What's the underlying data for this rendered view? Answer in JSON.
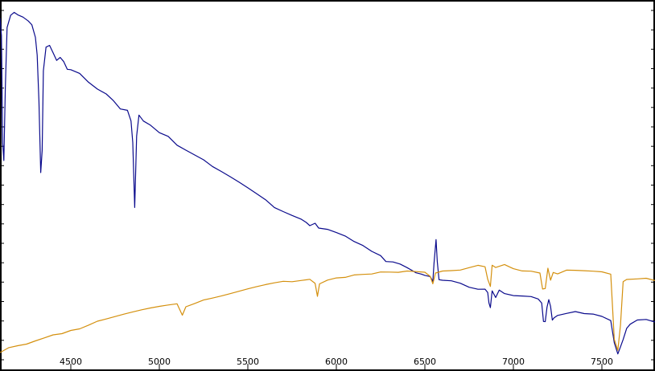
{
  "chart_data": {
    "type": "line",
    "title": "",
    "xlabel": "",
    "ylabel": "",
    "xlim": [
      4100,
      7800
    ],
    "ylim": [
      0,
      1.0
    ],
    "grid": false,
    "x_ticks": [
      4500,
      5000,
      5500,
      6000,
      6500,
      7000,
      7500
    ],
    "x_tick_labels": [
      "4500",
      "5000",
      "5500",
      "6000",
      "6500",
      "7000",
      "7500"
    ],
    "y_tick_count": 19,
    "colors": {
      "blue": "#0a0a8c",
      "orange": "#d4900e",
      "frame": "#000000",
      "background": "#ffffff"
    },
    "series": [
      {
        "color": "#0a0a8c",
        "points": [
          [
            4100,
            0.95
          ],
          [
            4108,
            0.9
          ],
          [
            4115,
            0.6
          ],
          [
            4122,
            0.55
          ],
          [
            4130,
            0.75
          ],
          [
            4140,
            0.92
          ],
          [
            4160,
            0.955
          ],
          [
            4180,
            0.965
          ],
          [
            4200,
            0.96
          ],
          [
            4230,
            0.955
          ],
          [
            4260,
            0.945
          ],
          [
            4280,
            0.935
          ],
          [
            4300,
            0.9
          ],
          [
            4310,
            0.85
          ],
          [
            4320,
            0.72
          ],
          [
            4330,
            0.52
          ],
          [
            4338,
            0.58
          ],
          [
            4345,
            0.8
          ],
          [
            4360,
            0.865
          ],
          [
            4380,
            0.87
          ],
          [
            4400,
            0.85
          ],
          [
            4420,
            0.83
          ],
          [
            4440,
            0.84
          ],
          [
            4460,
            0.83
          ],
          [
            4480,
            0.81
          ],
          [
            4500,
            0.81
          ],
          [
            4550,
            0.8
          ],
          [
            4600,
            0.775
          ],
          [
            4650,
            0.755
          ],
          [
            4700,
            0.74
          ],
          [
            4740,
            0.72
          ],
          [
            4780,
            0.695
          ],
          [
            4820,
            0.69
          ],
          [
            4840,
            0.66
          ],
          [
            4850,
            0.6
          ],
          [
            4861,
            0.42
          ],
          [
            4872,
            0.62
          ],
          [
            4885,
            0.68
          ],
          [
            4910,
            0.665
          ],
          [
            4950,
            0.655
          ],
          [
            5000,
            0.635
          ],
          [
            5050,
            0.625
          ],
          [
            5100,
            0.6
          ],
          [
            5150,
            0.585
          ],
          [
            5200,
            0.57
          ],
          [
            5250,
            0.555
          ],
          [
            5300,
            0.535
          ],
          [
            5350,
            0.52
          ],
          [
            5400,
            0.505
          ],
          [
            5450,
            0.49
          ],
          [
            5500,
            0.475
          ],
          [
            5550,
            0.46
          ],
          [
            5600,
            0.445
          ],
          [
            5650,
            0.425
          ],
          [
            5700,
            0.415
          ],
          [
            5750,
            0.405
          ],
          [
            5800,
            0.395
          ],
          [
            5830,
            0.385
          ],
          [
            5850,
            0.375
          ],
          [
            5880,
            0.38
          ],
          [
            5900,
            0.365
          ],
          [
            5950,
            0.36
          ],
          [
            6000,
            0.35
          ],
          [
            6050,
            0.34
          ],
          [
            6100,
            0.325
          ],
          [
            6150,
            0.315
          ],
          [
            6200,
            0.3
          ],
          [
            6250,
            0.29
          ],
          [
            6280,
            0.275
          ],
          [
            6320,
            0.275
          ],
          [
            6360,
            0.27
          ],
          [
            6400,
            0.26
          ],
          [
            6450,
            0.245
          ],
          [
            6480,
            0.24
          ],
          [
            6500,
            0.235
          ],
          [
            6530,
            0.23
          ],
          [
            6545,
            0.215
          ],
          [
            6552,
            0.265
          ],
          [
            6563,
            0.33
          ],
          [
            6570,
            0.27
          ],
          [
            6580,
            0.22
          ],
          [
            6600,
            0.22
          ],
          [
            6650,
            0.22
          ],
          [
            6700,
            0.215
          ],
          [
            6750,
            0.205
          ],
          [
            6800,
            0.2
          ],
          [
            6840,
            0.2
          ],
          [
            6855,
            0.19
          ],
          [
            6862,
            0.16
          ],
          [
            6870,
            0.145
          ],
          [
            6880,
            0.19
          ],
          [
            6900,
            0.17
          ],
          [
            6920,
            0.19
          ],
          [
            6950,
            0.18
          ],
          [
            7000,
            0.175
          ],
          [
            7050,
            0.175
          ],
          [
            7100,
            0.175
          ],
          [
            7140,
            0.17
          ],
          [
            7160,
            0.16
          ],
          [
            7170,
            0.11
          ],
          [
            7180,
            0.11
          ],
          [
            7190,
            0.15
          ],
          [
            7200,
            0.17
          ],
          [
            7210,
            0.15
          ],
          [
            7220,
            0.11
          ],
          [
            7230,
            0.115
          ],
          [
            7250,
            0.12
          ],
          [
            7300,
            0.125
          ],
          [
            7350,
            0.13
          ],
          [
            7400,
            0.125
          ],
          [
            7450,
            0.125
          ],
          [
            7500,
            0.12
          ],
          [
            7550,
            0.11
          ],
          [
            7570,
            0.05
          ],
          [
            7590,
            0.02
          ],
          [
            7605,
            0.04
          ],
          [
            7620,
            0.06
          ],
          [
            7640,
            0.09
          ],
          [
            7660,
            0.1
          ],
          [
            7700,
            0.11
          ],
          [
            7750,
            0.11
          ],
          [
            7800,
            0.105
          ]
        ]
      },
      {
        "color": "#d4900e",
        "points": [
          [
            4100,
            0.02
          ],
          [
            4150,
            0.03
          ],
          [
            4200,
            0.035
          ],
          [
            4250,
            0.04
          ],
          [
            4300,
            0.05
          ],
          [
            4350,
            0.06
          ],
          [
            4400,
            0.07
          ],
          [
            4450,
            0.075
          ],
          [
            4500,
            0.085
          ],
          [
            4550,
            0.09
          ],
          [
            4600,
            0.1
          ],
          [
            4650,
            0.11
          ],
          [
            4700,
            0.115
          ],
          [
            4750,
            0.12
          ],
          [
            4800,
            0.125
          ],
          [
            4850,
            0.13
          ],
          [
            4900,
            0.135
          ],
          [
            4950,
            0.14
          ],
          [
            5000,
            0.145
          ],
          [
            5050,
            0.15
          ],
          [
            5100,
            0.155
          ],
          [
            5130,
            0.125
          ],
          [
            5150,
            0.15
          ],
          [
            5200,
            0.16
          ],
          [
            5250,
            0.17
          ],
          [
            5300,
            0.175
          ],
          [
            5350,
            0.18
          ],
          [
            5400,
            0.185
          ],
          [
            5450,
            0.19
          ],
          [
            5500,
            0.195
          ],
          [
            5550,
            0.2
          ],
          [
            5600,
            0.205
          ],
          [
            5650,
            0.21
          ],
          [
            5700,
            0.215
          ],
          [
            5750,
            0.215
          ],
          [
            5800,
            0.22
          ],
          [
            5850,
            0.225
          ],
          [
            5880,
            0.215
          ],
          [
            5893,
            0.18
          ],
          [
            5905,
            0.215
          ],
          [
            5950,
            0.225
          ],
          [
            6000,
            0.23
          ],
          [
            6050,
            0.23
          ],
          [
            6100,
            0.235
          ],
          [
            6150,
            0.235
          ],
          [
            6200,
            0.235
          ],
          [
            6250,
            0.24
          ],
          [
            6300,
            0.24
          ],
          [
            6350,
            0.24
          ],
          [
            6400,
            0.245
          ],
          [
            6450,
            0.245
          ],
          [
            6500,
            0.245
          ],
          [
            6530,
            0.235
          ],
          [
            6545,
            0.215
          ],
          [
            6560,
            0.245
          ],
          [
            6600,
            0.25
          ],
          [
            6650,
            0.25
          ],
          [
            6700,
            0.25
          ],
          [
            6750,
            0.255
          ],
          [
            6800,
            0.26
          ],
          [
            6840,
            0.255
          ],
          [
            6855,
            0.22
          ],
          [
            6870,
            0.2
          ],
          [
            6880,
            0.26
          ],
          [
            6900,
            0.255
          ],
          [
            6950,
            0.265
          ],
          [
            7000,
            0.255
          ],
          [
            7050,
            0.25
          ],
          [
            7100,
            0.25
          ],
          [
            7150,
            0.245
          ],
          [
            7165,
            0.2
          ],
          [
            7180,
            0.2
          ],
          [
            7195,
            0.255
          ],
          [
            7210,
            0.22
          ],
          [
            7225,
            0.24
          ],
          [
            7250,
            0.235
          ],
          [
            7300,
            0.245
          ],
          [
            7350,
            0.245
          ],
          [
            7400,
            0.245
          ],
          [
            7450,
            0.245
          ],
          [
            7500,
            0.245
          ],
          [
            7550,
            0.24
          ],
          [
            7570,
            0.06
          ],
          [
            7590,
            0.03
          ],
          [
            7605,
            0.1
          ],
          [
            7620,
            0.22
          ],
          [
            7640,
            0.225
          ],
          [
            7700,
            0.225
          ],
          [
            7750,
            0.225
          ],
          [
            7800,
            0.22
          ]
        ]
      }
    ]
  }
}
